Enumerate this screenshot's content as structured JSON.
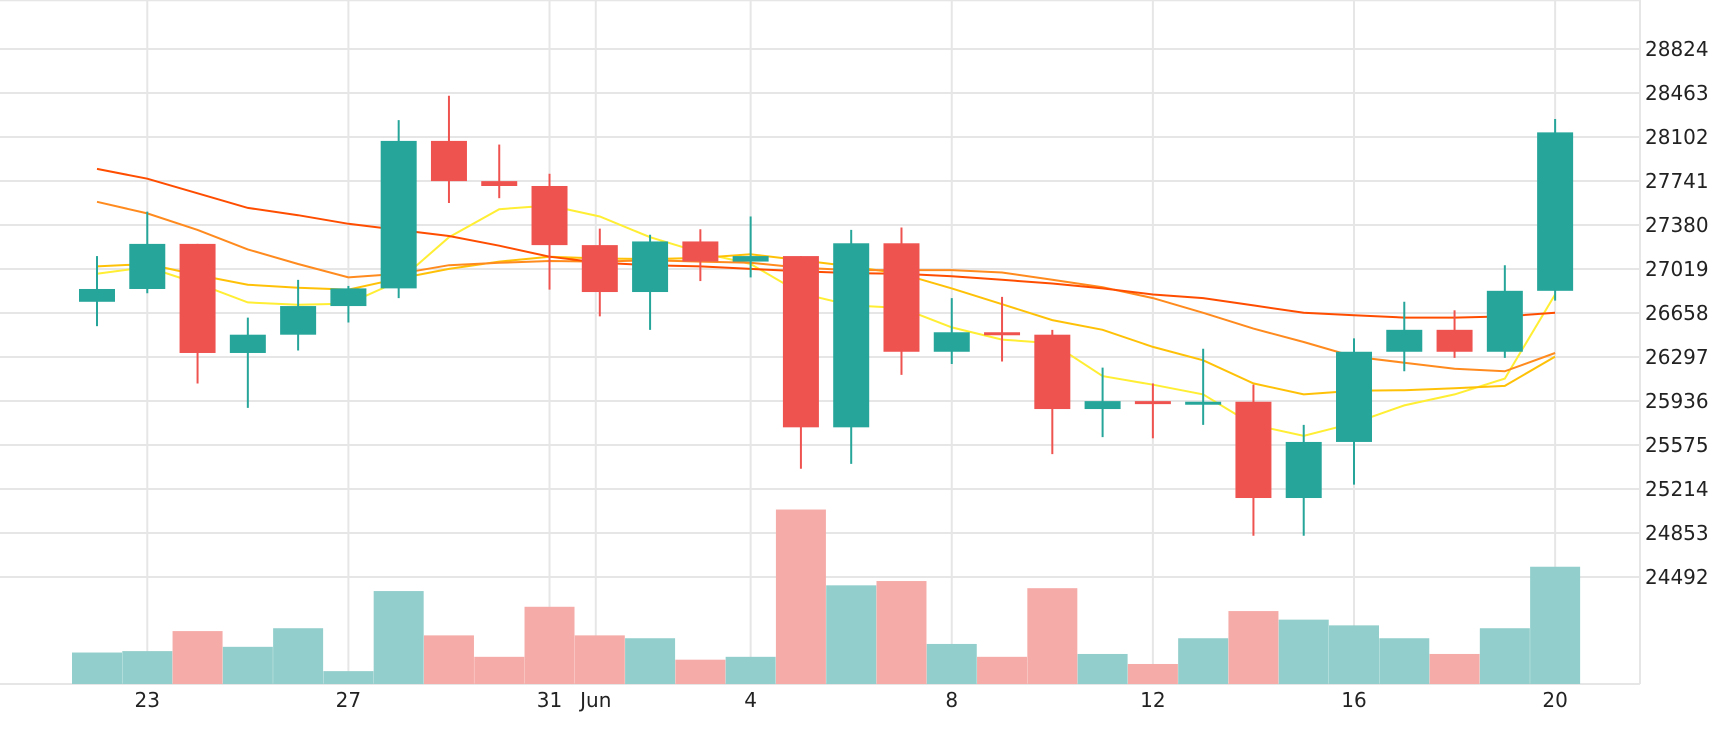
{
  "chart_data": {
    "type": "candlestick",
    "title": "",
    "y_axis": {
      "position": "right",
      "ticks": [
        24492,
        24853,
        25214,
        25575,
        25936,
        26297,
        26658,
        27019,
        27380,
        27741,
        28102,
        28463,
        28824
      ]
    },
    "x_axis": {
      "tick_labels": [
        "23",
        "27",
        "31",
        "Jun",
        "4",
        "8",
        "12",
        "16",
        "20"
      ],
      "tick_dates": [
        "May 23",
        "May 27",
        "May 31",
        "Jun 1",
        "Jun 4",
        "Jun 8",
        "Jun 12",
        "Jun 16",
        "Jun 20"
      ]
    },
    "grid": true,
    "colors": {
      "up": "#26a69a",
      "down": "#ef5350",
      "up_volume": "#92cecb",
      "down_volume": "#f5aba7",
      "grid": "#e6e6e6",
      "ma_lines": [
        "#ffee33",
        "#ffc107",
        "#ff8a1e",
        "#ff4d00"
      ]
    },
    "series": [
      {
        "date": "May 22",
        "open": 26750,
        "high": 27125,
        "low": 26550,
        "close": 26855,
        "volume": 22
      },
      {
        "date": "May 23",
        "open": 26855,
        "high": 27490,
        "low": 26820,
        "close": 27225,
        "volume": 23
      },
      {
        "date": "May 24",
        "open": 27225,
        "high": 27225,
        "low": 26080,
        "close": 26330,
        "volume": 37
      },
      {
        "date": "May 25",
        "open": 26330,
        "high": 26620,
        "low": 25880,
        "close": 26480,
        "volume": 26
      },
      {
        "date": "May 26",
        "open": 26480,
        "high": 26930,
        "low": 26350,
        "close": 26715,
        "volume": 39
      },
      {
        "date": "May 27",
        "open": 26715,
        "high": 26880,
        "low": 26580,
        "close": 26860,
        "volume": 9
      },
      {
        "date": "May 28",
        "open": 26860,
        "high": 28240,
        "low": 26780,
        "close": 28070,
        "volume": 65
      },
      {
        "date": "May 29",
        "open": 28070,
        "high": 28440,
        "low": 27560,
        "close": 27740,
        "volume": 34
      },
      {
        "date": "May 30",
        "open": 27740,
        "high": 28040,
        "low": 27600,
        "close": 27700,
        "volume": 19
      },
      {
        "date": "May 31",
        "open": 27700,
        "high": 27800,
        "low": 26850,
        "close": 27215,
        "volume": 54
      },
      {
        "date": "Jun 1",
        "open": 27215,
        "high": 27350,
        "low": 26630,
        "close": 26830,
        "volume": 34
      },
      {
        "date": "Jun 2",
        "open": 26830,
        "high": 27300,
        "low": 26520,
        "close": 27245,
        "volume": 32
      },
      {
        "date": "Jun 3",
        "open": 27245,
        "high": 27345,
        "low": 26920,
        "close": 27080,
        "volume": 17
      },
      {
        "date": "Jun 4",
        "open": 27080,
        "high": 27450,
        "low": 26950,
        "close": 27125,
        "volume": 19
      },
      {
        "date": "Jun 5",
        "open": 27125,
        "high": 27125,
        "low": 25380,
        "close": 25720,
        "volume": 122
      },
      {
        "date": "Jun 6",
        "open": 25720,
        "high": 27340,
        "low": 25420,
        "close": 27230,
        "volume": 69
      },
      {
        "date": "Jun 7",
        "open": 27230,
        "high": 27360,
        "low": 26150,
        "close": 26340,
        "volume": 72
      },
      {
        "date": "Jun 8",
        "open": 26340,
        "high": 26780,
        "low": 26240,
        "close": 26500,
        "volume": 28
      },
      {
        "date": "Jun 9",
        "open": 26500,
        "high": 26790,
        "low": 26260,
        "close": 26480,
        "volume": 19
      },
      {
        "date": "Jun 10",
        "open": 26480,
        "high": 26520,
        "low": 25500,
        "close": 25870,
        "volume": 67
      },
      {
        "date": "Jun 11",
        "open": 25870,
        "high": 26210,
        "low": 25640,
        "close": 25935,
        "volume": 21
      },
      {
        "date": "Jun 12",
        "open": 25935,
        "high": 26080,
        "low": 25630,
        "close": 25915,
        "volume": 14
      },
      {
        "date": "Jun 13",
        "open": 25920,
        "high": 26365,
        "low": 25740,
        "close": 25930,
        "volume": 32
      },
      {
        "date": "Jun 14",
        "open": 25930,
        "high": 26070,
        "low": 24830,
        "close": 25140,
        "volume": 51
      },
      {
        "date": "Jun 15",
        "open": 25140,
        "high": 25740,
        "low": 24830,
        "close": 25600,
        "volume": 45
      },
      {
        "date": "Jun 16",
        "open": 25600,
        "high": 26450,
        "low": 25250,
        "close": 26340,
        "volume": 41
      },
      {
        "date": "Jun 17",
        "open": 26340,
        "high": 26750,
        "low": 26180,
        "close": 26520,
        "volume": 32
      },
      {
        "date": "Jun 18",
        "open": 26520,
        "high": 26680,
        "low": 26290,
        "close": 26340,
        "volume": 21
      },
      {
        "date": "Jun 19",
        "open": 26340,
        "high": 27050,
        "low": 26290,
        "close": 26840,
        "volume": 39
      },
      {
        "date": "Jun 20",
        "open": 26840,
        "high": 28250,
        "low": 26760,
        "close": 28140,
        "volume": 82
      }
    ],
    "moving_averages": [
      {
        "color": "#ffee33",
        "values": [
          26980,
          27035,
          26900,
          26745,
          26725,
          26735,
          26920,
          27280,
          27510,
          27540,
          27450,
          27280,
          27155,
          27060,
          26820,
          26720,
          26700,
          26540,
          26440,
          26410,
          26140,
          26070,
          25990,
          25740,
          25650,
          25755,
          25900,
          25990,
          26120,
          26810
        ]
      },
      {
        "color": "#ffc107",
        "values": [
          27040,
          27060,
          26970,
          26890,
          26865,
          26850,
          26940,
          27020,
          27080,
          27120,
          27105,
          27100,
          27110,
          27140,
          27090,
          27040,
          26980,
          26860,
          26730,
          26600,
          26520,
          26380,
          26270,
          26080,
          25990,
          26020,
          26025,
          26040,
          26060,
          26300
        ]
      },
      {
        "color": "#ff8a1e",
        "values": [
          27570,
          27475,
          27340,
          27180,
          27060,
          26950,
          26980,
          27050,
          27070,
          27085,
          27080,
          27090,
          27080,
          27070,
          27030,
          27010,
          27010,
          27010,
          26990,
          26930,
          26870,
          26780,
          26660,
          26530,
          26420,
          26300,
          26250,
          26200,
          26180,
          26330
        ]
      },
      {
        "color": "#ff4d00",
        "values": [
          27840,
          27760,
          27640,
          27520,
          27460,
          27390,
          27340,
          27290,
          27210,
          27120,
          27070,
          27050,
          27040,
          27020,
          27000,
          26985,
          26980,
          26960,
          26930,
          26900,
          26860,
          26810,
          26780,
          26720,
          26660,
          26640,
          26620,
          26620,
          26630,
          26660
        ]
      }
    ]
  }
}
